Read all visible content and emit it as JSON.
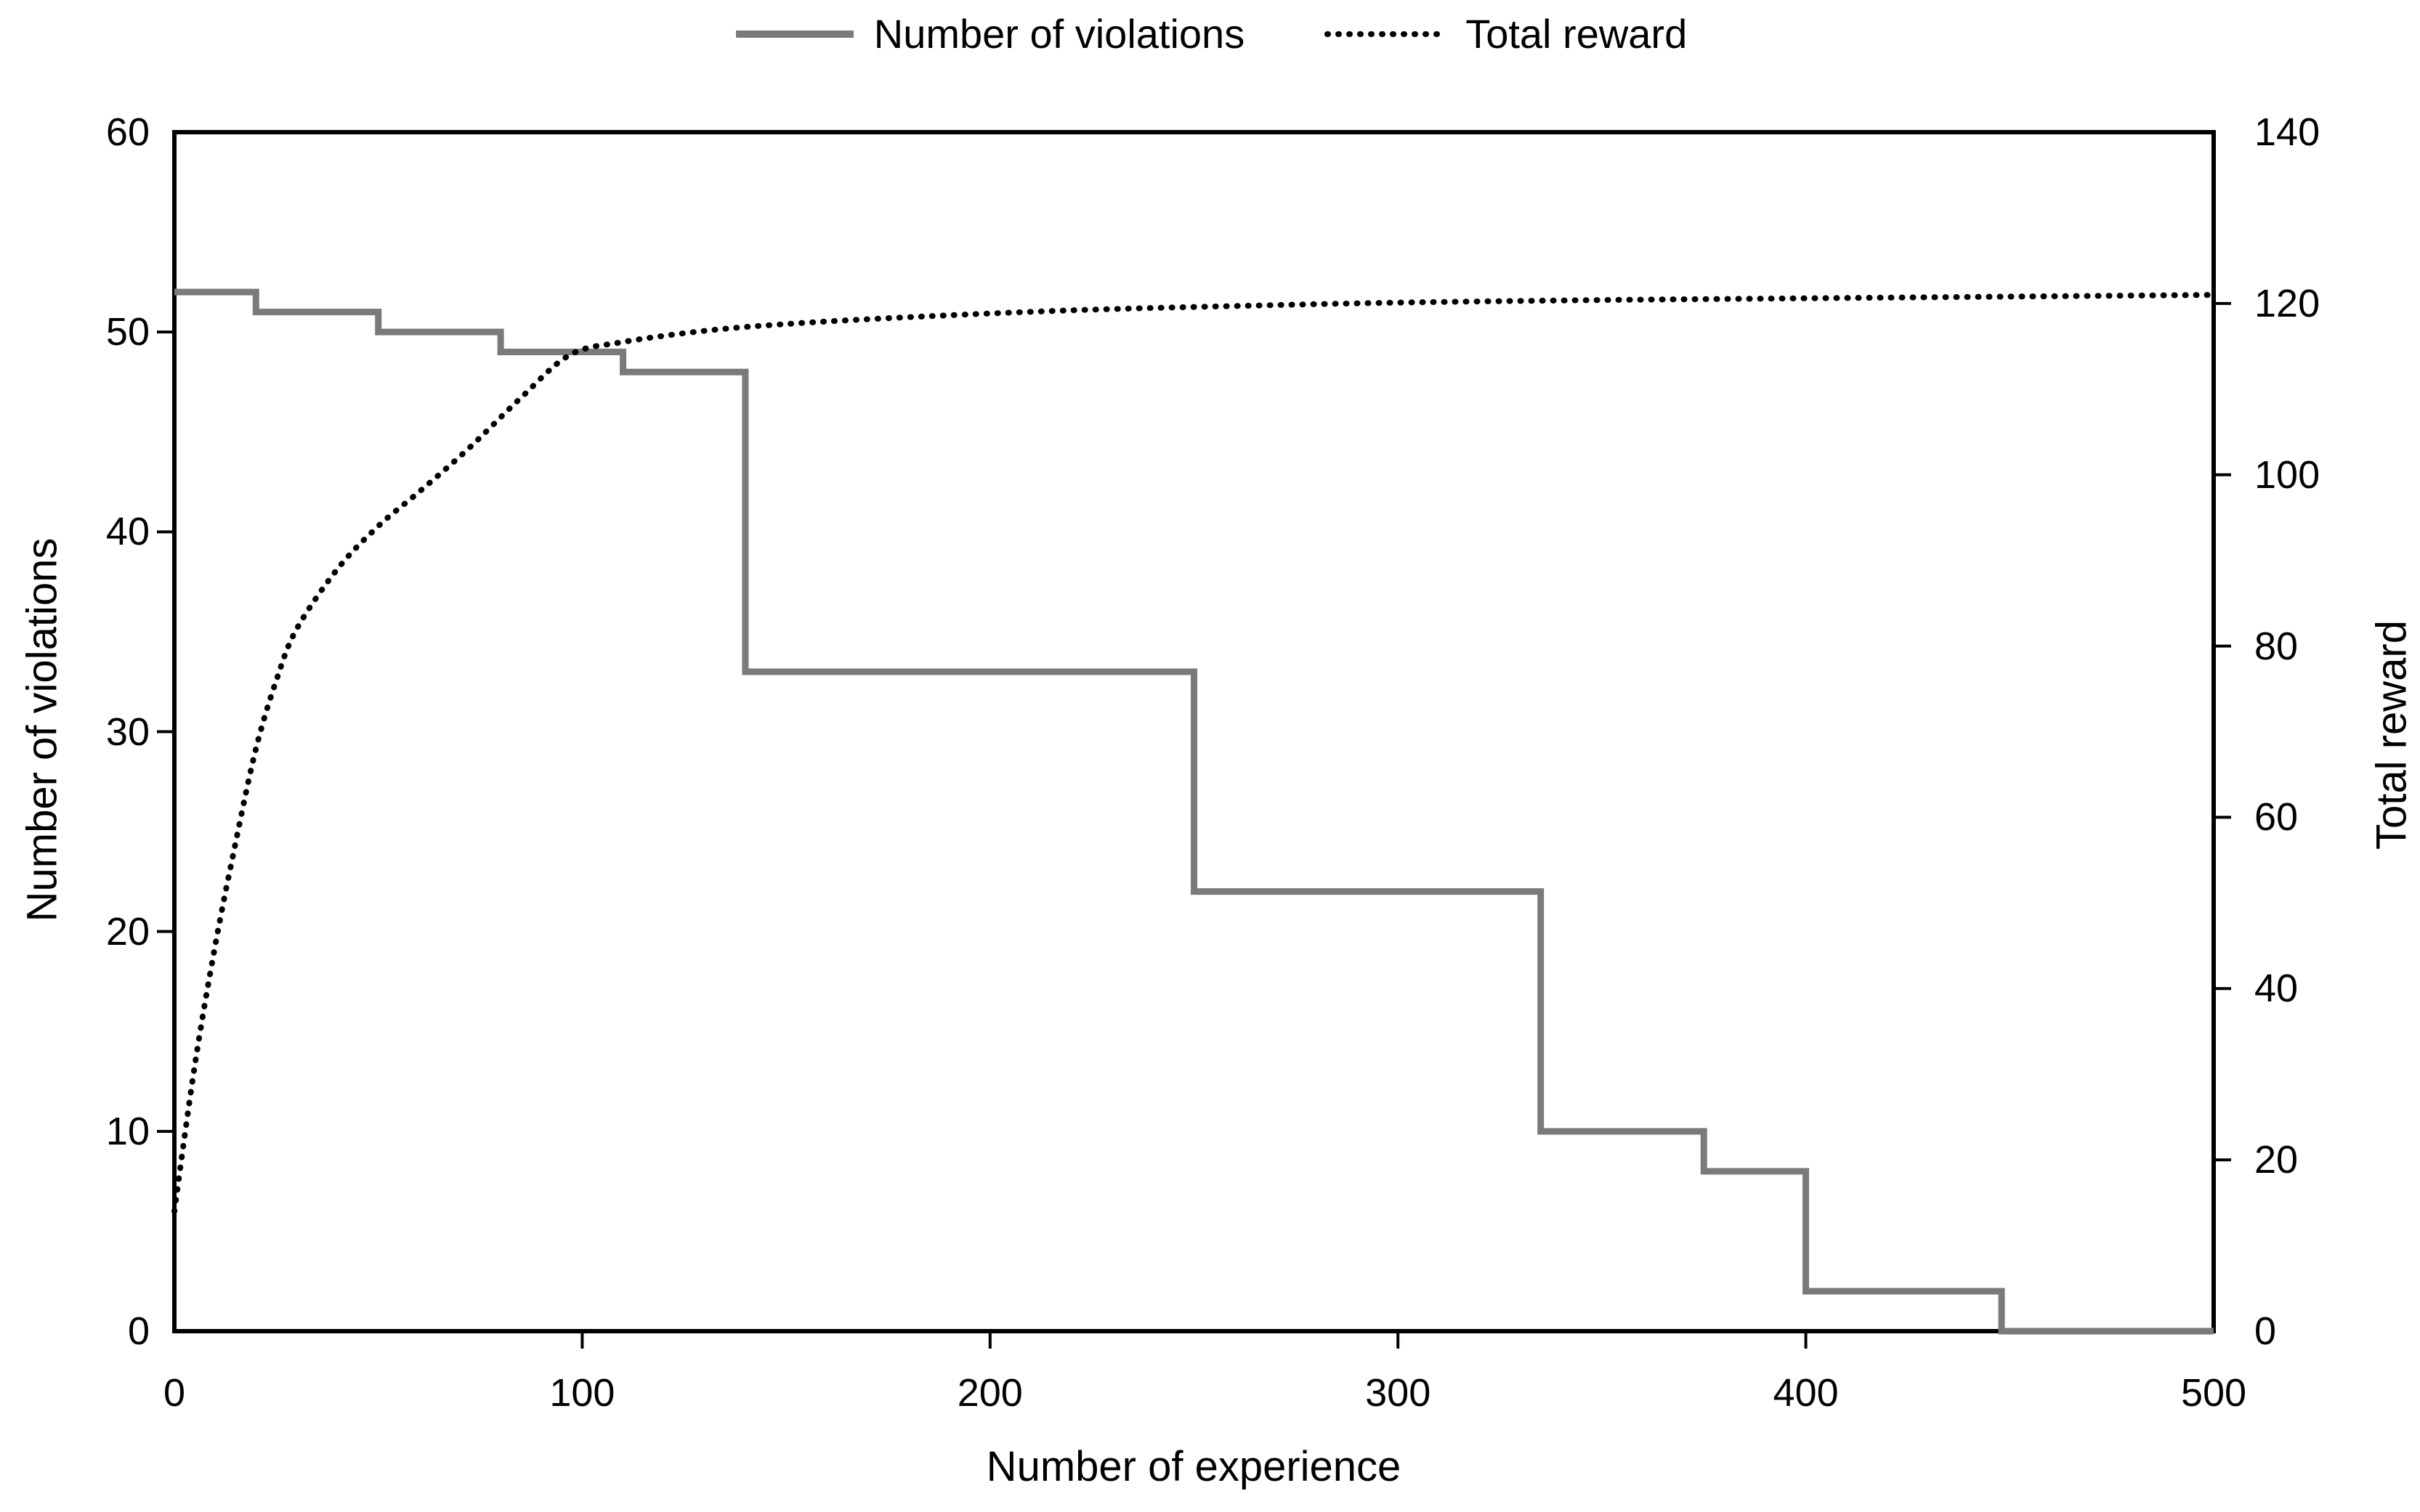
{
  "chart_data": {
    "type": "line",
    "title": "",
    "xlabel": "Number of experience",
    "ylabel_left": "Number of violations",
    "ylabel_right": "Total reward",
    "x_range": [
      0,
      500
    ],
    "x_ticks": [
      0,
      100,
      200,
      300,
      400,
      500
    ],
    "left_axis_range": [
      0,
      60
    ],
    "left_ticks": [
      0,
      10,
      20,
      30,
      40,
      50,
      60
    ],
    "right_axis_range": [
      0,
      140
    ],
    "right_ticks": [
      0,
      20,
      40,
      60,
      80,
      100,
      120,
      140
    ],
    "grid": false,
    "legend_position": "top-center",
    "frame_color": "#000000",
    "series": [
      {
        "name": "Number of violations",
        "axis": "left",
        "style": "solid",
        "color": "#7a7a7a",
        "steps": [
          {
            "x_start": 0,
            "x_end": 20,
            "value": 52
          },
          {
            "x_start": 20,
            "x_end": 50,
            "value": 51
          },
          {
            "x_start": 50,
            "x_end": 80,
            "value": 50
          },
          {
            "x_start": 80,
            "x_end": 110,
            "value": 49
          },
          {
            "x_start": 110,
            "x_end": 140,
            "value": 48
          },
          {
            "x_start": 140,
            "x_end": 250,
            "value": 33
          },
          {
            "x_start": 250,
            "x_end": 335,
            "value": 22
          },
          {
            "x_start": 335,
            "x_end": 375,
            "value": 10
          },
          {
            "x_start": 375,
            "x_end": 400,
            "value": 8
          },
          {
            "x_start": 400,
            "x_end": 448,
            "value": 2
          },
          {
            "x_start": 448,
            "x_end": 500,
            "value": 0
          }
        ]
      },
      {
        "name": "Total reward",
        "axis": "right",
        "style": "dotted",
        "color": "#000000",
        "points": [
          [
            0,
            14
          ],
          [
            5,
            31
          ],
          [
            10,
            45
          ],
          [
            15,
            57
          ],
          [
            20,
            68
          ],
          [
            25,
            76
          ],
          [
            30,
            82
          ],
          [
            40,
            89
          ],
          [
            50,
            94
          ],
          [
            60,
            98
          ],
          [
            72,
            103
          ],
          [
            85,
            109
          ],
          [
            97,
            114
          ],
          [
            110,
            115.5
          ],
          [
            130,
            116.8
          ],
          [
            150,
            117.6
          ],
          [
            180,
            118.4
          ],
          [
            220,
            119.2
          ],
          [
            260,
            119.7
          ],
          [
            300,
            120.1
          ],
          [
            350,
            120.4
          ],
          [
            400,
            120.6
          ],
          [
            450,
            120.8
          ],
          [
            500,
            121
          ]
        ]
      }
    ]
  }
}
